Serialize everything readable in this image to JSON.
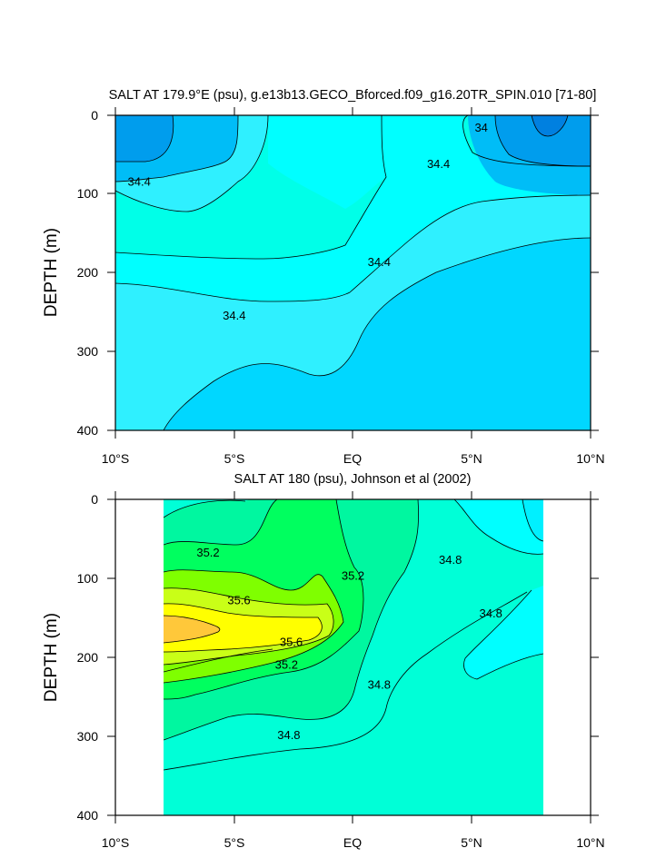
{
  "chart_data": [
    {
      "type": "contour",
      "title": "SALT AT 179.9°E (psu), g.e13b13.GECO_Bforced.f09_g16.20TR_SPIN.010 [71-80]",
      "ylabel": "DEPTH (m)",
      "xlim": [
        -10,
        10
      ],
      "ylim": [
        400,
        0
      ],
      "x_ticks": [
        "10°S",
        "5°S",
        "EQ",
        "5°N",
        "10°N"
      ],
      "y_ticks": [
        "0",
        "100",
        "200",
        "300",
        "400"
      ],
      "contour_labels": [
        {
          "text": "34.4",
          "x": -9.0,
          "y": 85
        },
        {
          "text": "34.4",
          "x": -5.0,
          "y": 255
        },
        {
          "text": "34.4",
          "x": 1.1,
          "y": 187
        },
        {
          "text": "34.4",
          "x": 3.6,
          "y": 62
        },
        {
          "text": "34",
          "x": 5.4,
          "y": 16
        }
      ],
      "colors": [
        "#009ded",
        "#00bdf7",
        "#00d7ff",
        "#2ff0ff",
        "#00ffff",
        "#00ffe8"
      ]
    },
    {
      "type": "contour",
      "title": "SALT AT 180 (psu), Johnson et al (2002)",
      "ylabel": "DEPTH (m)",
      "xlim": [
        -10,
        10
      ],
      "ylim": [
        400,
        0
      ],
      "x_ticks": [
        "10°S",
        "5°S",
        "EQ",
        "5°N",
        "10°N"
      ],
      "y_ticks": [
        "0",
        "100",
        "200",
        "300",
        "400"
      ],
      "data_extent": {
        "x": [
          -8,
          8
        ],
        "y": [
          5,
          400
        ]
      },
      "contour_labels": [
        {
          "text": "35.2",
          "x": -6.1,
          "y": 68
        },
        {
          "text": "35.6",
          "x": -4.8,
          "y": 128
        },
        {
          "text": "35.6",
          "x": -2.6,
          "y": 181
        },
        {
          "text": "35.2",
          "x": -2.8,
          "y": 210
        },
        {
          "text": "35.2",
          "x": 0.0,
          "y": 97
        },
        {
          "text": "34.8",
          "x": 4.1,
          "y": 77
        },
        {
          "text": "34.8",
          "x": 5.8,
          "y": 145
        },
        {
          "text": "34.8",
          "x": 1.1,
          "y": 235
        },
        {
          "text": "34.8",
          "x": -2.7,
          "y": 299
        }
      ],
      "colors": [
        "#00ffff",
        "#00ffd7",
        "#00f7a0",
        "#00ff5f",
        "#7fff00",
        "#c9ff17",
        "#ffff00",
        "#ffc83a"
      ]
    }
  ]
}
